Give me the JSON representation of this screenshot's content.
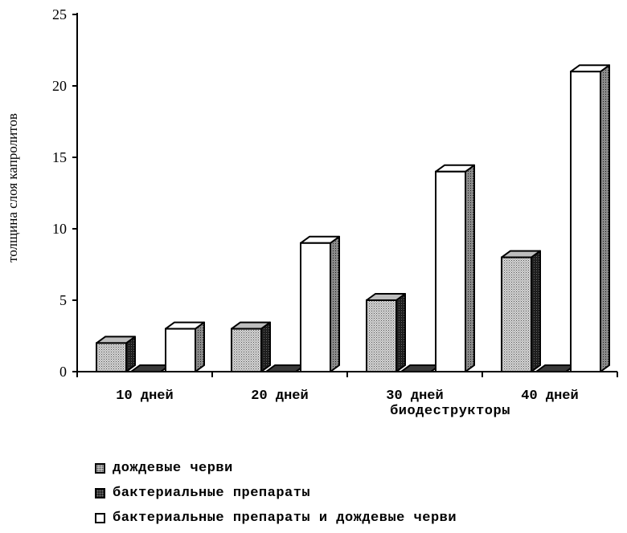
{
  "chart_data": {
    "type": "bar",
    "categories": [
      "10 дней",
      "20 дней",
      "30 дней",
      "40 дней"
    ],
    "series": [
      {
        "name": "дождевые черви",
        "values": [
          2,
          3,
          5,
          8
        ]
      },
      {
        "name": "бактериальные препараты",
        "values": [
          0,
          0,
          0,
          0
        ]
      },
      {
        "name": "бактериальные препараты и дождевые черви",
        "values": [
          3,
          9,
          14,
          21
        ]
      }
    ],
    "title": "",
    "xlabel": "биодеструкторы",
    "ylabel": "толщина слоя капролитов",
    "ylim": [
      0,
      25
    ],
    "yticks": [
      0,
      5,
      10,
      15,
      20,
      25
    ],
    "grid": false,
    "style": "3d-bars",
    "legend_position": "bottom-left"
  }
}
